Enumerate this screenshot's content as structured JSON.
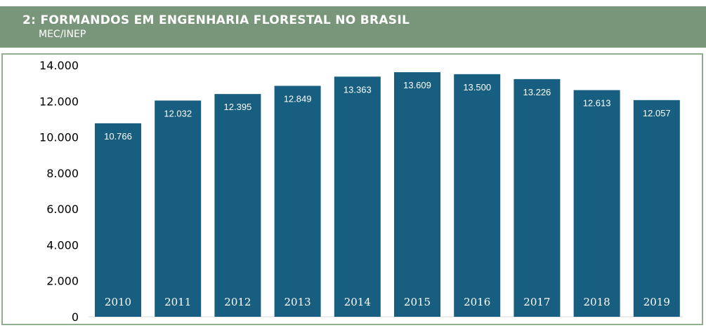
{
  "header": {
    "title": "2: FORMANDOS EM ENGENHARIA FLORESTAL NO BRASIL",
    "subtitle": "MEC/INEP"
  },
  "colors": {
    "header_bg": "#7a967a",
    "panel_border": "#8faf8f",
    "bar": "#175e80"
  },
  "chart_data": {
    "type": "bar",
    "title": "2: FORMANDOS EM ENGENHARIA FLORESTAL NO BRASIL",
    "subtitle": "MEC/INEP",
    "categories": [
      "2010",
      "2011",
      "2012",
      "2013",
      "2014",
      "2015",
      "2016",
      "2017",
      "2018",
      "2019"
    ],
    "values": [
      10766,
      12032,
      12395,
      12849,
      13363,
      13609,
      13500,
      13226,
      12613,
      12057
    ],
    "value_labels": [
      "10.766",
      "12.032",
      "12.395",
      "12.849",
      "13.363",
      "13.609",
      "13.500",
      "13.226",
      "12.613",
      "12.057"
    ],
    "ylim": [
      0,
      14000
    ],
    "yticks": [
      0,
      2000,
      4000,
      6000,
      8000,
      10000,
      12000,
      14000
    ],
    "ytick_labels": [
      "0",
      "2.000",
      "4.000",
      "6.000",
      "8.000",
      "10.000",
      "12.000",
      "14.000"
    ],
    "xlabel": "",
    "ylabel": "",
    "grid": false,
    "legend": "none",
    "category_labels_inside_bars": true
  }
}
